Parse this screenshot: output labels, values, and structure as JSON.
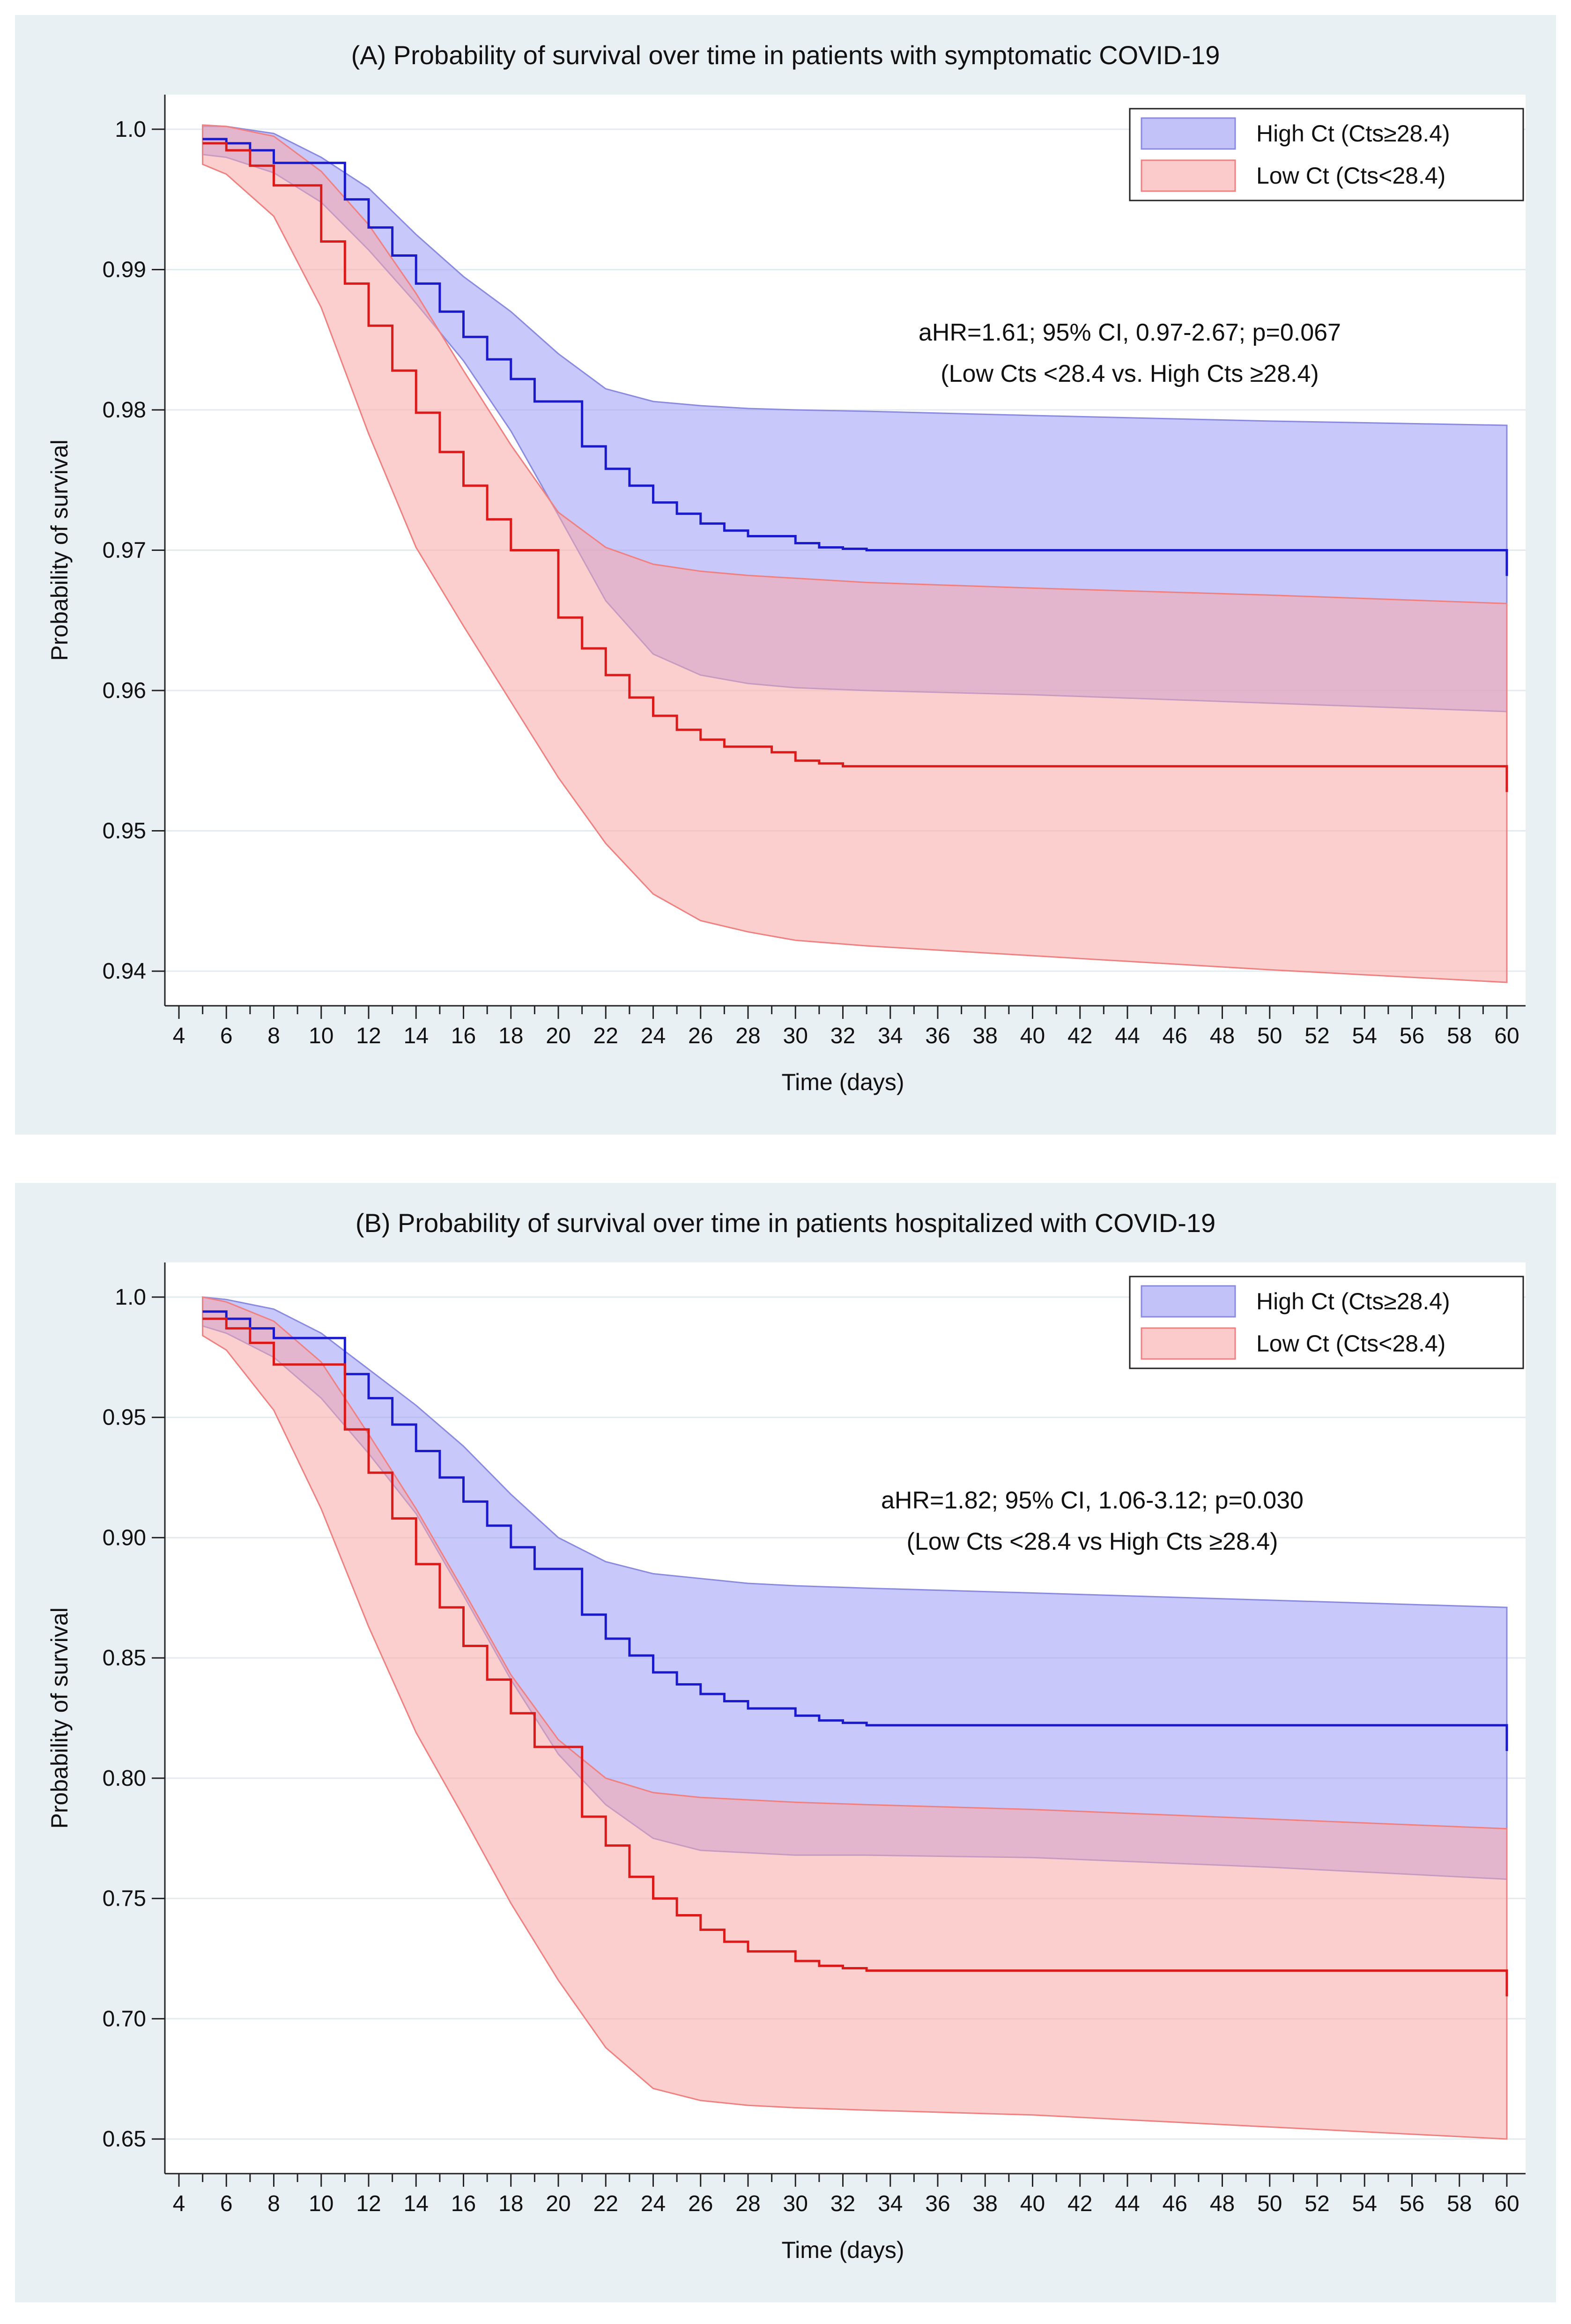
{
  "chart_data": [
    {
      "type": "line",
      "subtype": "kaplan-meier survival with 95% confidence bands",
      "title": "(A) Probability of survival over time in patients with symptomatic COVID-19",
      "xlabel": "Time (days)",
      "ylabel": "Probability of survival",
      "xlim": [
        4,
        60
      ],
      "ylim": [
        0.94,
        1.0
      ],
      "xticks": [
        4,
        6,
        8,
        10,
        12,
        14,
        16,
        18,
        20,
        22,
        24,
        26,
        28,
        30,
        32,
        34,
        36,
        38,
        40,
        42,
        44,
        46,
        48,
        50,
        52,
        54,
        56,
        58,
        60
      ],
      "yticks": [
        0.94,
        0.95,
        0.96,
        0.97,
        0.98,
        0.99,
        1.0
      ],
      "ytick_labels": [
        "0.94",
        "0.95",
        "0.96",
        "0.97",
        "0.98",
        "0.99",
        "1.0"
      ],
      "grid": true,
      "legend": {
        "placement": "top-right",
        "entries": [
          "High Ct (Cts≥28.4)",
          "Low Ct (Cts<28.4)"
        ]
      },
      "annotation": [
        "aHR=1.61; 95% CI, 0.97-2.67; p=0.067",
        "(Low Cts <28.4 vs. High Cts ≥28.4)"
      ],
      "series": [
        {
          "name": "High Ct (Cts≥28.4)",
          "color": "#1a1acc",
          "band_color": "#9a9af5",
          "band_edge": "#8a8ae0",
          "x": [
            5,
            6,
            7,
            8,
            9,
            10,
            11,
            12,
            13,
            14,
            15,
            16,
            17,
            18,
            19,
            20,
            21,
            22,
            23,
            24,
            25,
            26,
            27,
            28,
            29,
            30,
            31,
            32,
            33,
            60
          ],
          "y": [
            0.9993,
            0.999,
            0.9985,
            0.9976,
            0.9976,
            0.9976,
            0.995,
            0.993,
            0.991,
            0.989,
            0.987,
            0.9852,
            0.9836,
            0.9822,
            0.9806,
            0.9806,
            0.9774,
            0.9758,
            0.9746,
            0.9734,
            0.9726,
            0.9719,
            0.9714,
            0.971,
            0.971,
            0.9705,
            0.9702,
            0.9701,
            0.97,
            0.97
          ],
          "ci_x": [
            5,
            6,
            8,
            10,
            12,
            14,
            16,
            18,
            20,
            22,
            24,
            26,
            28,
            30,
            33,
            40,
            50,
            60
          ],
          "ci_upper": [
            1.0002,
            1.0002,
            0.9997,
            0.998,
            0.9958,
            0.9925,
            0.9895,
            0.987,
            0.984,
            0.9815,
            0.9806,
            0.9803,
            0.9801,
            0.98,
            0.9799,
            0.9796,
            0.9792,
            0.9789
          ],
          "ci_lower": [
            0.9982,
            0.998,
            0.9969,
            0.9948,
            0.9914,
            0.9876,
            0.9835,
            0.9785,
            0.9725,
            0.9664,
            0.9626,
            0.9611,
            0.9605,
            0.9602,
            0.96,
            0.9597,
            0.9591,
            0.9585
          ]
        },
        {
          "name": "Low Ct (Cts<28.4)",
          "color": "#dd1a1a",
          "band_color": "#f9a8a8",
          "band_edge": "#f08080",
          "x": [
            5,
            6,
            7,
            8,
            9,
            10,
            11,
            12,
            13,
            14,
            15,
            16,
            17,
            18,
            19,
            20,
            21,
            22,
            23,
            24,
            25,
            26,
            27,
            28,
            29,
            30,
            31,
            32,
            33,
            60
          ],
          "y": [
            0.999,
            0.9985,
            0.9974,
            0.996,
            0.996,
            0.992,
            0.989,
            0.986,
            0.9828,
            0.9798,
            0.977,
            0.9746,
            0.9722,
            0.97,
            0.97,
            0.9652,
            0.963,
            0.9611,
            0.9595,
            0.9582,
            0.9572,
            0.9565,
            0.956,
            0.956,
            0.9556,
            0.955,
            0.9548,
            0.9546,
            0.9546,
            0.9546
          ],
          "ci_x": [
            5,
            6,
            8,
            10,
            12,
            14,
            16,
            18,
            20,
            22,
            24,
            26,
            28,
            30,
            33,
            40,
            50,
            60
          ],
          "ci_upper": [
            1.0003,
            1.0002,
            0.9995,
            0.997,
            0.9932,
            0.9883,
            0.9828,
            0.9775,
            0.9727,
            0.9702,
            0.969,
            0.9685,
            0.9682,
            0.968,
            0.9677,
            0.9673,
            0.9668,
            0.9662
          ],
          "ci_lower": [
            0.9975,
            0.9968,
            0.9938,
            0.9873,
            0.9783,
            0.9702,
            0.9646,
            0.9592,
            0.9538,
            0.9491,
            0.9455,
            0.9436,
            0.9428,
            0.9422,
            0.9418,
            0.9411,
            0.9401,
            0.9392
          ]
        }
      ]
    },
    {
      "type": "line",
      "subtype": "kaplan-meier survival with 95% confidence bands",
      "title": "(B) Probability of survival over time in patients hospitalized with COVID-19",
      "xlabel": "Time (days)",
      "ylabel": "Probability of survival",
      "xlim": [
        4,
        60
      ],
      "ylim": [
        0.65,
        1.0
      ],
      "xticks": [
        4,
        6,
        8,
        10,
        12,
        14,
        16,
        18,
        20,
        22,
        24,
        26,
        28,
        30,
        32,
        34,
        36,
        38,
        40,
        42,
        44,
        46,
        48,
        50,
        52,
        54,
        56,
        58,
        60
      ],
      "yticks": [
        0.65,
        0.7,
        0.75,
        0.8,
        0.85,
        0.9,
        0.95,
        1.0
      ],
      "ytick_labels": [
        "0.65",
        "0.70",
        "0.75",
        "0.80",
        "0.85",
        "0.90",
        "0.95",
        "1.0"
      ],
      "grid": true,
      "legend": {
        "placement": "top-right",
        "entries": [
          "High Ct (Cts≥28.4)",
          "Low Ct (Cts<28.4)"
        ]
      },
      "annotation": [
        "aHR=1.82; 95% CI, 1.06-3.12; p=0.030",
        "(Low Cts <28.4 vs High Cts ≥28.4)"
      ],
      "series": [
        {
          "name": "High Ct (Cts≥28.4)",
          "color": "#1a1acc",
          "band_color": "#9a9af5",
          "band_edge": "#8a8ae0",
          "x": [
            5,
            6,
            7,
            8,
            9,
            10,
            11,
            12,
            13,
            14,
            15,
            16,
            17,
            18,
            19,
            20,
            21,
            22,
            23,
            24,
            25,
            26,
            27,
            28,
            29,
            30,
            31,
            32,
            33,
            60
          ],
          "y": [
            0.994,
            0.991,
            0.987,
            0.983,
            0.983,
            0.983,
            0.968,
            0.958,
            0.947,
            0.936,
            0.925,
            0.915,
            0.905,
            0.896,
            0.887,
            0.887,
            0.868,
            0.858,
            0.851,
            0.844,
            0.839,
            0.835,
            0.832,
            0.829,
            0.829,
            0.826,
            0.824,
            0.823,
            0.822,
            0.822
          ],
          "ci_x": [
            5,
            6,
            8,
            10,
            12,
            14,
            16,
            18,
            20,
            22,
            24,
            26,
            28,
            30,
            33,
            40,
            50,
            60
          ],
          "ci_upper": [
            1.0,
            0.999,
            0.995,
            0.985,
            0.97,
            0.955,
            0.938,
            0.918,
            0.9,
            0.89,
            0.885,
            0.883,
            0.881,
            0.88,
            0.879,
            0.877,
            0.874,
            0.871
          ],
          "ci_lower": [
            0.988,
            0.985,
            0.975,
            0.958,
            0.935,
            0.91,
            0.876,
            0.841,
            0.81,
            0.789,
            0.775,
            0.77,
            0.769,
            0.768,
            0.768,
            0.767,
            0.763,
            0.758
          ]
        },
        {
          "name": "Low Ct (Cts<28.4)",
          "color": "#dd1a1a",
          "band_color": "#f9a8a8",
          "band_edge": "#f08080",
          "x": [
            5,
            6,
            7,
            8,
            9,
            10,
            11,
            12,
            13,
            14,
            15,
            16,
            17,
            18,
            19,
            20,
            21,
            22,
            23,
            24,
            25,
            26,
            27,
            28,
            29,
            30,
            31,
            32,
            33,
            60
          ],
          "y": [
            0.991,
            0.987,
            0.981,
            0.972,
            0.972,
            0.972,
            0.945,
            0.927,
            0.908,
            0.889,
            0.871,
            0.855,
            0.841,
            0.827,
            0.813,
            0.813,
            0.784,
            0.772,
            0.759,
            0.75,
            0.743,
            0.737,
            0.732,
            0.728,
            0.728,
            0.724,
            0.722,
            0.721,
            0.72,
            0.72
          ],
          "ci_x": [
            5,
            6,
            8,
            10,
            12,
            14,
            16,
            18,
            20,
            22,
            24,
            26,
            28,
            30,
            33,
            40,
            50,
            60
          ],
          "ci_upper": [
            1.0,
            0.998,
            0.99,
            0.973,
            0.943,
            0.912,
            0.878,
            0.843,
            0.816,
            0.8,
            0.794,
            0.792,
            0.791,
            0.79,
            0.789,
            0.787,
            0.783,
            0.779
          ],
          "ci_lower": [
            0.984,
            0.978,
            0.953,
            0.912,
            0.863,
            0.819,
            0.784,
            0.748,
            0.716,
            0.688,
            0.671,
            0.666,
            0.664,
            0.663,
            0.662,
            0.66,
            0.655,
            0.65
          ]
        }
      ]
    }
  ]
}
